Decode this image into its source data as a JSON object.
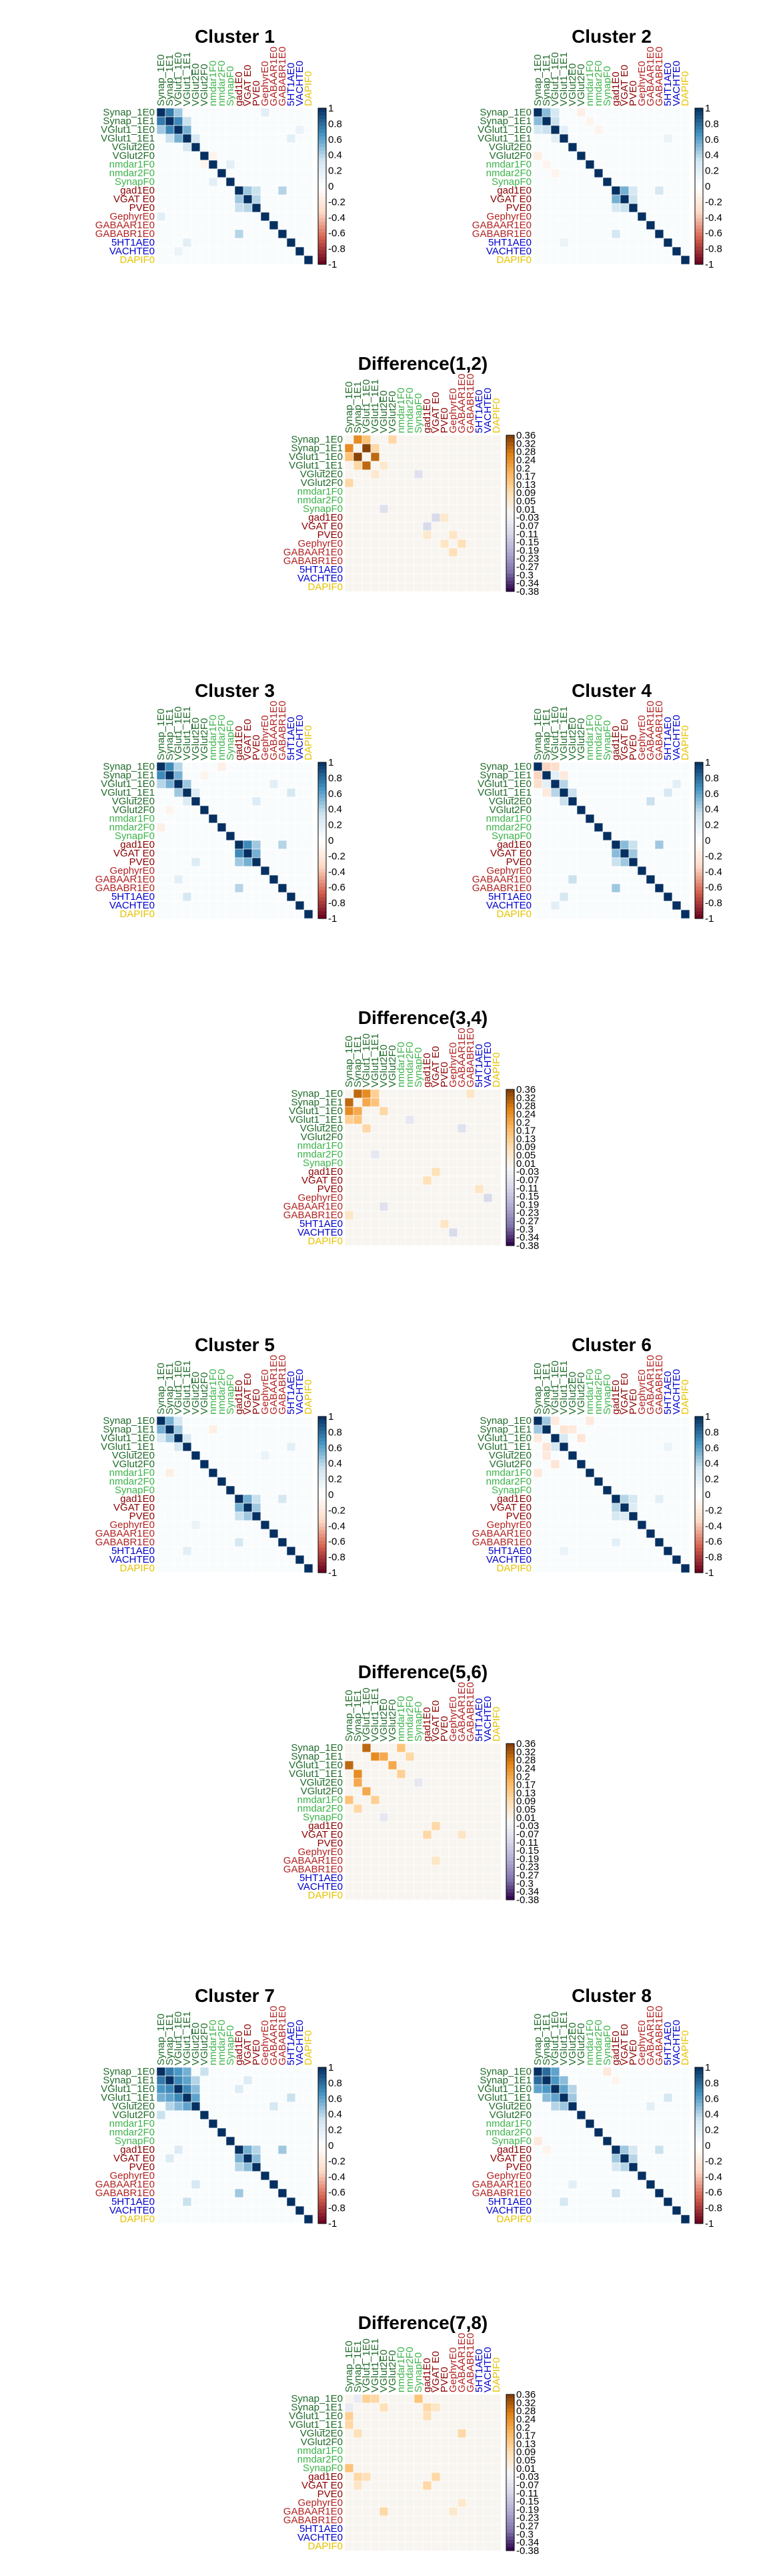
{
  "labels": [
    "Synap_1E0",
    "Synap_1E1",
    "VGlut1_1E0",
    "VGlut1_1E1",
    "VGlut2E0",
    "VGlut2F0",
    "nmdar1F0",
    "nmdar2F0",
    "SynapF0",
    "gad1E0",
    "VGAT E0",
    "PVE0",
    "GephyrE0",
    "GABAAR1E0",
    "GABABR1E0",
    "5HT1AE0",
    "VACHTE0",
    "DAPIF0"
  ],
  "label_colors": [
    "#1f6b2a",
    "#1f6b2a",
    "#1f6b2a",
    "#1f6b2a",
    "#1f6b2a",
    "#1f6b2a",
    "#3cb34a",
    "#3cb34a",
    "#3cb34a",
    "#8b0000",
    "#8b0000",
    "#8b0000",
    "#b22222",
    "#b22222",
    "#b22222",
    "#0000cc",
    "#0000cc",
    "#e6c200"
  ],
  "colorbar_cluster": {
    "ticks": [
      "1",
      "0.8",
      "0.6",
      "0.4",
      "0.2",
      "0",
      "-0.2",
      "-0.4",
      "-0.6",
      "-0.8",
      "-1"
    ],
    "colors": [
      "#053061",
      "#4393c3",
      "#d1e5f0",
      "#ffffff",
      "#fddbc7",
      "#d6604d",
      "#67001f"
    ]
  },
  "colorbar_difference": {
    "ticks": [
      "0.36",
      "0.32",
      "0.28",
      "0.24",
      "0.2",
      "0.17",
      "0.13",
      "0.09",
      "0.05",
      "0.01",
      "-0.03",
      "-0.07",
      "-0.11",
      "-0.15",
      "-0.19",
      "-0.23",
      "-0.27",
      "-0.3",
      "-0.34",
      "-0.38"
    ],
    "colors": [
      "#7f3b08",
      "#e08214",
      "#fdb863",
      "#fee0b6",
      "#f7f7f7",
      "#d8daeb",
      "#b2abd2",
      "#8073ac",
      "#2d004b"
    ]
  },
  "panels": [
    {
      "id": "c1",
      "title": "Cluster 1",
      "kind": "cluster"
    },
    {
      "id": "c2",
      "title": "Cluster 2",
      "kind": "cluster"
    },
    {
      "id": "d12",
      "title": "Difference(1,2)",
      "kind": "difference"
    },
    {
      "id": "c3",
      "title": "Cluster 3",
      "kind": "cluster"
    },
    {
      "id": "c4",
      "title": "Cluster 4",
      "kind": "cluster"
    },
    {
      "id": "d34",
      "title": "Difference(3,4)",
      "kind": "difference"
    },
    {
      "id": "c5",
      "title": "Cluster 5",
      "kind": "cluster"
    },
    {
      "id": "c6",
      "title": "Cluster 6",
      "kind": "cluster"
    },
    {
      "id": "d56",
      "title": "Difference(5,6)",
      "kind": "difference"
    },
    {
      "id": "c7",
      "title": "Cluster 7",
      "kind": "cluster"
    },
    {
      "id": "c8",
      "title": "Cluster 8",
      "kind": "cluster"
    },
    {
      "id": "d78",
      "title": "Difference(7,8)",
      "kind": "difference"
    }
  ],
  "chart_data": [
    {
      "type": "heatmap",
      "title": "Cluster 1",
      "scale": [
        -1,
        1
      ],
      "off_diagonal": [
        {
          "r": 0,
          "c": 1,
          "v": 0.75
        },
        {
          "r": 1,
          "c": 2,
          "v": 0.7
        },
        {
          "r": 0,
          "c": 2,
          "v": 0.45
        },
        {
          "r": 2,
          "c": 3,
          "v": 0.55
        },
        {
          "r": 1,
          "c": 3,
          "v": 0.35
        },
        {
          "r": 3,
          "c": 4,
          "v": 0.3
        },
        {
          "r": 6,
          "c": 8,
          "v": 0.2
        },
        {
          "r": 9,
          "c": 10,
          "v": 0.45
        },
        {
          "r": 9,
          "c": 11,
          "v": 0.35
        },
        {
          "r": 10,
          "c": 11,
          "v": 0.4
        },
        {
          "r": 9,
          "c": 14,
          "v": 0.4
        },
        {
          "r": 3,
          "c": 15,
          "v": 0.2
        },
        {
          "r": 0,
          "c": 12,
          "v": 0.2
        },
        {
          "r": 5,
          "c": 6,
          "v": -0.1
        },
        {
          "r": 2,
          "c": 16,
          "v": 0.15
        }
      ]
    },
    {
      "type": "heatmap",
      "title": "Cluster 2",
      "scale": [
        -1,
        1
      ],
      "off_diagonal": [
        {
          "r": 0,
          "c": 1,
          "v": 0.5
        },
        {
          "r": 1,
          "c": 2,
          "v": 0.35
        },
        {
          "r": 0,
          "c": 2,
          "v": 0.3
        },
        {
          "r": 2,
          "c": 3,
          "v": 0.2
        },
        {
          "r": 0,
          "c": 5,
          "v": -0.15
        },
        {
          "r": 1,
          "c": 6,
          "v": -0.1
        },
        {
          "r": 9,
          "c": 10,
          "v": 0.55
        },
        {
          "r": 9,
          "c": 11,
          "v": 0.3
        },
        {
          "r": 10,
          "c": 11,
          "v": 0.35
        },
        {
          "r": 9,
          "c": 14,
          "v": 0.3
        },
        {
          "r": 3,
          "c": 15,
          "v": 0.15
        },
        {
          "r": 2,
          "c": 7,
          "v": -0.1
        }
      ]
    },
    {
      "type": "heatmap",
      "title": "Difference(1,2)",
      "scale": [
        -0.38,
        0.36
      ],
      "off_diagonal": [
        {
          "r": 0,
          "c": 1,
          "v": 0.25
        },
        {
          "r": 1,
          "c": 2,
          "v": 0.35
        },
        {
          "r": 0,
          "c": 2,
          "v": 0.15
        },
        {
          "r": 2,
          "c": 3,
          "v": 0.3
        },
        {
          "r": 1,
          "c": 3,
          "v": 0.1
        },
        {
          "r": 3,
          "c": 4,
          "v": 0.05
        },
        {
          "r": 0,
          "c": 5,
          "v": 0.1
        },
        {
          "r": 9,
          "c": 10,
          "v": -0.1
        },
        {
          "r": 9,
          "c": 11,
          "v": 0.05
        },
        {
          "r": 4,
          "c": 8,
          "v": -0.08
        },
        {
          "r": 11,
          "c": 12,
          "v": 0.06
        },
        {
          "r": 12,
          "c": 13,
          "v": 0.08
        }
      ]
    },
    {
      "type": "heatmap",
      "title": "Cluster 3",
      "scale": [
        -1,
        1
      ],
      "off_diagonal": [
        {
          "r": 0,
          "c": 1,
          "v": 0.7
        },
        {
          "r": 1,
          "c": 2,
          "v": 0.55
        },
        {
          "r": 0,
          "c": 2,
          "v": 0.4
        },
        {
          "r": 2,
          "c": 3,
          "v": 0.45
        },
        {
          "r": 3,
          "c": 4,
          "v": 0.25
        },
        {
          "r": 9,
          "c": 10,
          "v": 0.7
        },
        {
          "r": 9,
          "c": 11,
          "v": 0.45
        },
        {
          "r": 10,
          "c": 11,
          "v": 0.55
        },
        {
          "r": 9,
          "c": 14,
          "v": 0.4
        },
        {
          "r": 3,
          "c": 15,
          "v": 0.3
        },
        {
          "r": 2,
          "c": 13,
          "v": 0.2
        },
        {
          "r": 4,
          "c": 11,
          "v": 0.25
        },
        {
          "r": 0,
          "c": 7,
          "v": -0.15
        },
        {
          "r": 1,
          "c": 5,
          "v": -0.1
        }
      ]
    },
    {
      "type": "heatmap",
      "title": "Cluster 4",
      "scale": [
        -1,
        1
      ],
      "off_diagonal": [
        {
          "r": 0,
          "c": 1,
          "v": -0.35
        },
        {
          "r": 0,
          "c": 2,
          "v": -0.3
        },
        {
          "r": 1,
          "c": 2,
          "v": 0.2
        },
        {
          "r": 1,
          "c": 3,
          "v": -0.2
        },
        {
          "r": 2,
          "c": 3,
          "v": 0.4
        },
        {
          "r": 3,
          "c": 4,
          "v": 0.35
        },
        {
          "r": 9,
          "c": 10,
          "v": 0.5
        },
        {
          "r": 9,
          "c": 11,
          "v": 0.35
        },
        {
          "r": 10,
          "c": 11,
          "v": 0.45
        },
        {
          "r": 9,
          "c": 14,
          "v": 0.45
        },
        {
          "r": 3,
          "c": 15,
          "v": 0.3
        },
        {
          "r": 4,
          "c": 13,
          "v": 0.35
        },
        {
          "r": 2,
          "c": 16,
          "v": 0.2
        }
      ]
    },
    {
      "type": "heatmap",
      "title": "Difference(3,4)",
      "scale": [
        -0.38,
        0.36
      ],
      "off_diagonal": [
        {
          "r": 0,
          "c": 1,
          "v": 0.3
        },
        {
          "r": 0,
          "c": 2,
          "v": 0.25
        },
        {
          "r": 1,
          "c": 2,
          "v": 0.2
        },
        {
          "r": 1,
          "c": 3,
          "v": 0.15
        },
        {
          "r": 0,
          "c": 3,
          "v": 0.12
        },
        {
          "r": 2,
          "c": 4,
          "v": 0.1
        },
        {
          "r": 9,
          "c": 10,
          "v": 0.08
        },
        {
          "r": 4,
          "c": 13,
          "v": -0.08
        },
        {
          "r": 3,
          "c": 7,
          "v": -0.06
        },
        {
          "r": 0,
          "c": 14,
          "v": 0.06
        },
        {
          "r": 12,
          "c": 16,
          "v": -0.1
        },
        {
          "r": 11,
          "c": 15,
          "v": 0.06
        }
      ]
    },
    {
      "type": "heatmap",
      "title": "Cluster 5",
      "scale": [
        -1,
        1
      ],
      "off_diagonal": [
        {
          "r": 0,
          "c": 1,
          "v": 0.55
        },
        {
          "r": 1,
          "c": 2,
          "v": 0.45
        },
        {
          "r": 0,
          "c": 2,
          "v": 0.3
        },
        {
          "r": 2,
          "c": 3,
          "v": 0.3
        },
        {
          "r": 9,
          "c": 10,
          "v": 0.55
        },
        {
          "r": 9,
          "c": 11,
          "v": 0.35
        },
        {
          "r": 10,
          "c": 11,
          "v": 0.45
        },
        {
          "r": 9,
          "c": 14,
          "v": 0.3
        },
        {
          "r": 3,
          "c": 15,
          "v": 0.2
        },
        {
          "r": 1,
          "c": 6,
          "v": -0.15
        },
        {
          "r": 4,
          "c": 12,
          "v": 0.15
        }
      ]
    },
    {
      "type": "heatmap",
      "title": "Cluster 6",
      "scale": [
        -1,
        1
      ],
      "off_diagonal": [
        {
          "r": 0,
          "c": 1,
          "v": 0.45
        },
        {
          "r": 0,
          "c": 2,
          "v": -0.2
        },
        {
          "r": 1,
          "c": 3,
          "v": -0.25
        },
        {
          "r": 1,
          "c": 4,
          "v": -0.2
        },
        {
          "r": 2,
          "c": 5,
          "v": -0.25
        },
        {
          "r": 0,
          "c": 6,
          "v": -0.2
        },
        {
          "r": 9,
          "c": 10,
          "v": 0.4
        },
        {
          "r": 9,
          "c": 11,
          "v": 0.3
        },
        {
          "r": 10,
          "c": 11,
          "v": 0.25
        },
        {
          "r": 9,
          "c": 14,
          "v": 0.2
        },
        {
          "r": 3,
          "c": 15,
          "v": 0.15
        },
        {
          "r": 2,
          "c": 3,
          "v": 0.3
        }
      ]
    },
    {
      "type": "heatmap",
      "title": "Difference(5,6)",
      "scale": [
        -0.38,
        0.36
      ],
      "off_diagonal": [
        {
          "r": 0,
          "c": 2,
          "v": 0.3
        },
        {
          "r": 1,
          "c": 3,
          "v": 0.25
        },
        {
          "r": 1,
          "c": 4,
          "v": 0.2
        },
        {
          "r": 2,
          "c": 5,
          "v": 0.2
        },
        {
          "r": 0,
          "c": 6,
          "v": 0.15
        },
        {
          "r": 3,
          "c": 6,
          "v": 0.12
        },
        {
          "r": 1,
          "c": 7,
          "v": 0.1
        },
        {
          "r": 9,
          "c": 10,
          "v": 0.1
        },
        {
          "r": 4,
          "c": 8,
          "v": -0.06
        },
        {
          "r": 10,
          "c": 13,
          "v": 0.06
        }
      ]
    },
    {
      "type": "heatmap",
      "title": "Cluster 7",
      "scale": [
        -1,
        1
      ],
      "off_diagonal": [
        {
          "r": 0,
          "c": 1,
          "v": 0.75
        },
        {
          "r": 0,
          "c": 2,
          "v": 0.65
        },
        {
          "r": 1,
          "c": 2,
          "v": 0.7
        },
        {
          "r": 1,
          "c": 3,
          "v": 0.6
        },
        {
          "r": 2,
          "c": 3,
          "v": 0.7
        },
        {
          "r": 0,
          "c": 3,
          "v": 0.55
        },
        {
          "r": 2,
          "c": 4,
          "v": 0.5
        },
        {
          "r": 3,
          "c": 4,
          "v": 0.6
        },
        {
          "r": 1,
          "c": 4,
          "v": 0.4
        },
        {
          "r": 0,
          "c": 5,
          "v": 0.35
        },
        {
          "r": 9,
          "c": 10,
          "v": 0.55
        },
        {
          "r": 9,
          "c": 11,
          "v": 0.4
        },
        {
          "r": 10,
          "c": 11,
          "v": 0.5
        },
        {
          "r": 9,
          "c": 14,
          "v": 0.45
        },
        {
          "r": 3,
          "c": 15,
          "v": 0.35
        },
        {
          "r": 2,
          "c": 9,
          "v": 0.25
        },
        {
          "r": 4,
          "c": 13,
          "v": 0.3
        },
        {
          "r": 1,
          "c": 10,
          "v": 0.25
        }
      ]
    },
    {
      "type": "heatmap",
      "title": "Cluster 8",
      "scale": [
        -1,
        1
      ],
      "off_diagonal": [
        {
          "r": 0,
          "c": 1,
          "v": 0.8
        },
        {
          "r": 0,
          "c": 2,
          "v": 0.6
        },
        {
          "r": 1,
          "c": 2,
          "v": 0.65
        },
        {
          "r": 1,
          "c": 3,
          "v": 0.5
        },
        {
          "r": 2,
          "c": 3,
          "v": 0.6
        },
        {
          "r": 3,
          "c": 4,
          "v": 0.45
        },
        {
          "r": 2,
          "c": 4,
          "v": 0.4
        },
        {
          "r": 9,
          "c": 10,
          "v": 0.45
        },
        {
          "r": 9,
          "c": 11,
          "v": 0.3
        },
        {
          "r": 10,
          "c": 11,
          "v": 0.4
        },
        {
          "r": 9,
          "c": 14,
          "v": 0.35
        },
        {
          "r": 3,
          "c": 15,
          "v": 0.3
        },
        {
          "r": 0,
          "c": 8,
          "v": -0.2
        },
        {
          "r": 4,
          "c": 13,
          "v": 0.2
        },
        {
          "r": 1,
          "c": 9,
          "v": -0.1
        }
      ]
    },
    {
      "type": "heatmap",
      "title": "Difference(7,8)",
      "scale": [
        -0.38,
        0.36
      ],
      "off_diagonal": [
        {
          "r": 0,
          "c": 1,
          "v": -0.05
        },
        {
          "r": 0,
          "c": 2,
          "v": 0.12
        },
        {
          "r": 0,
          "c": 3,
          "v": 0.1
        },
        {
          "r": 1,
          "c": 4,
          "v": 0.08
        },
        {
          "r": 0,
          "c": 8,
          "v": 0.15
        },
        {
          "r": 1,
          "c": 9,
          "v": 0.1
        },
        {
          "r": 2,
          "c": 9,
          "v": 0.08
        },
        {
          "r": 9,
          "c": 10,
          "v": 0.1
        },
        {
          "r": 1,
          "c": 10,
          "v": 0.06
        },
        {
          "r": 4,
          "c": 13,
          "v": 0.1
        },
        {
          "r": 12,
          "c": 13,
          "v": 0.05
        }
      ]
    }
  ]
}
